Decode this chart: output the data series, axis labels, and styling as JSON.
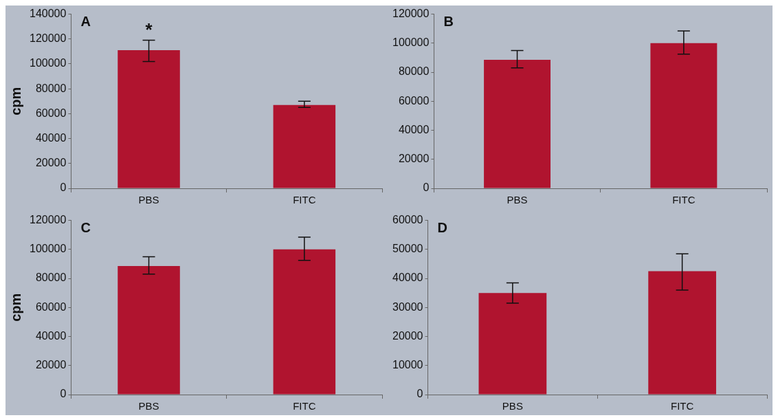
{
  "chart_data": [
    {
      "type": "bar",
      "title": "A",
      "ylabel": "cpm",
      "categories": [
        "PBS",
        "FITC"
      ],
      "values": [
        111000,
        67000
      ],
      "errors": [
        [
          102000,
          119000
        ],
        [
          65000,
          70000
        ]
      ],
      "color": "#b0142f",
      "ylim": [
        0,
        140000
      ],
      "yticks": [
        0,
        20000,
        40000,
        60000,
        80000,
        100000,
        120000,
        140000
      ],
      "grid": false,
      "legend": false,
      "annotations": [
        "*"
      ]
    },
    {
      "type": "bar",
      "title": "B",
      "categories": [
        "PBS",
        "FITC"
      ],
      "values": [
        88500,
        100000
      ],
      "errors": [
        [
          83000,
          95000
        ],
        [
          92500,
          108500
        ]
      ],
      "color": "#b0142f",
      "ylim": [
        0,
        120000
      ],
      "yticks": [
        0,
        20000,
        40000,
        60000,
        80000,
        100000,
        120000
      ],
      "grid": false,
      "legend": false
    },
    {
      "type": "bar",
      "title": "C",
      "ylabel": "cpm",
      "categories": [
        "PBS",
        "FITC"
      ],
      "values": [
        88500,
        100000
      ],
      "errors": [
        [
          83000,
          95000
        ],
        [
          92500,
          108500
        ]
      ],
      "color": "#b0142f",
      "ylim": [
        0,
        120000
      ],
      "yticks": [
        0,
        20000,
        40000,
        60000,
        80000,
        100000,
        120000
      ],
      "grid": false,
      "legend": false
    },
    {
      "type": "bar",
      "title": "D",
      "categories": [
        "PBS",
        "FITC"
      ],
      "values": [
        35000,
        42500
      ],
      "errors": [
        [
          31500,
          38500
        ],
        [
          36000,
          48500
        ]
      ],
      "color": "#b0142f",
      "ylim": [
        0,
        60000
      ],
      "yticks": [
        0,
        10000,
        20000,
        30000,
        40000,
        50000,
        60000
      ],
      "grid": false,
      "legend": false
    }
  ]
}
